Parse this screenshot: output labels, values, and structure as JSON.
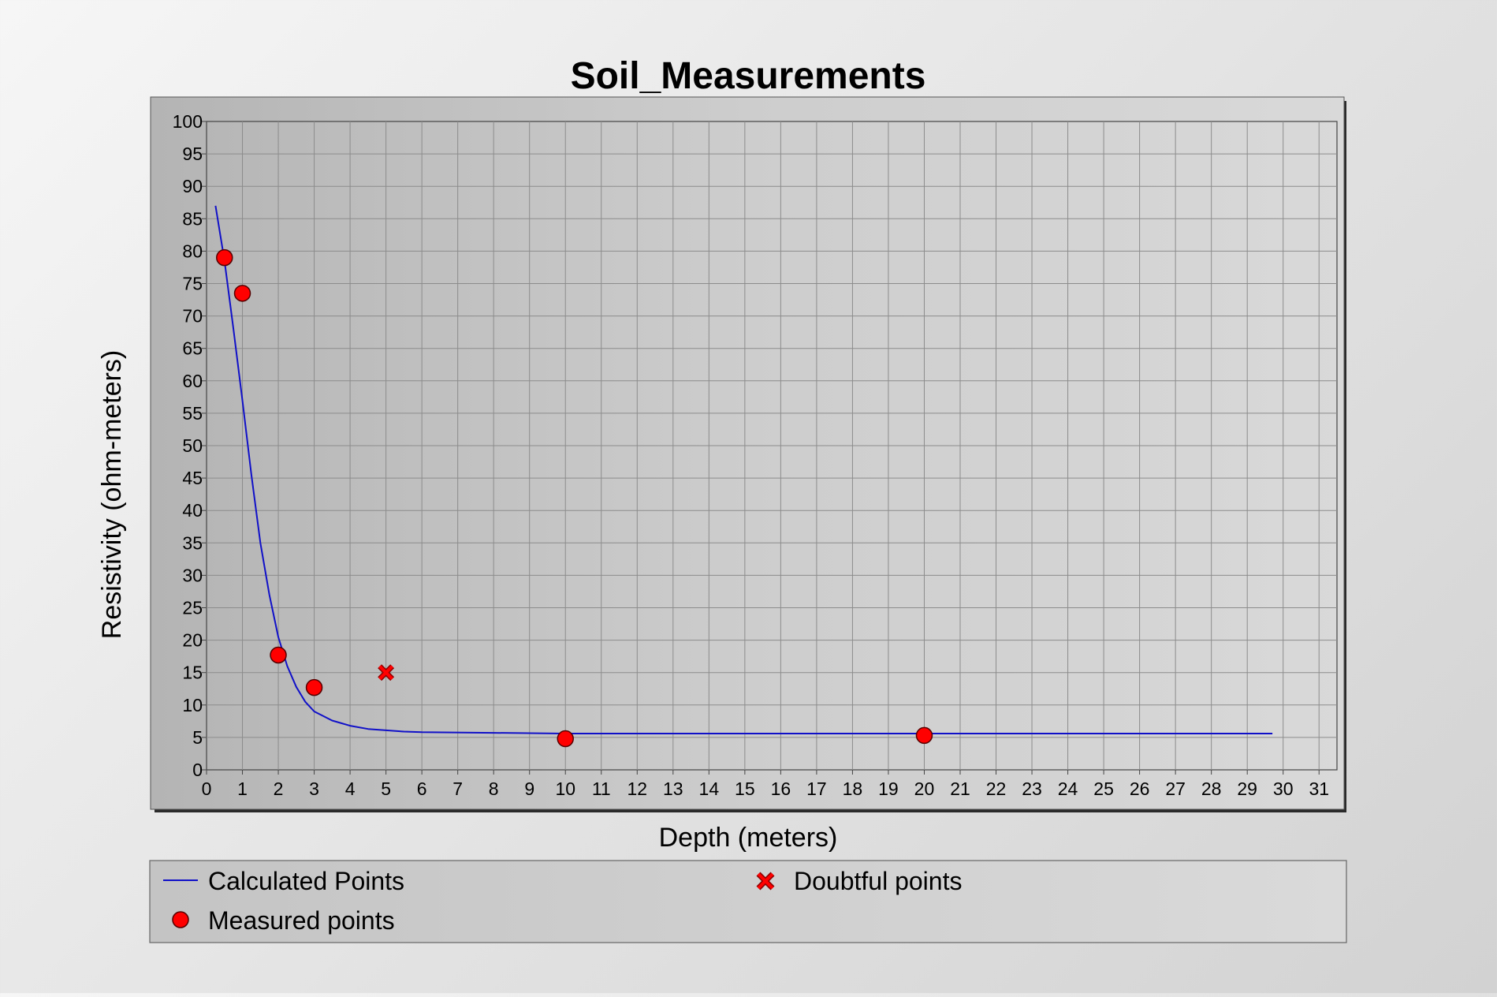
{
  "chart_data": {
    "type": "scatter",
    "title": "Soil_Measurements",
    "xlabel": "Depth (meters)",
    "ylabel": "Resistivity (ohm-meters)",
    "xlim": [
      0,
      31.5
    ],
    "ylim": [
      0,
      100
    ],
    "x_ticks": [
      0,
      1,
      2,
      3,
      4,
      5,
      6,
      7,
      8,
      9,
      10,
      11,
      12,
      13,
      14,
      15,
      16,
      17,
      18,
      19,
      20,
      21,
      22,
      23,
      24,
      25,
      26,
      27,
      28,
      29,
      30,
      31
    ],
    "y_ticks": [
      0,
      5,
      10,
      15,
      20,
      25,
      30,
      35,
      40,
      45,
      50,
      55,
      60,
      65,
      70,
      75,
      80,
      85,
      90,
      95,
      100
    ],
    "grid": true,
    "legend_position": "bottom",
    "series": [
      {
        "name": "Calculated Points",
        "type": "line",
        "color": "#1010c8",
        "x": [
          0.25,
          0.5,
          0.75,
          1.0,
          1.25,
          1.5,
          1.75,
          2.0,
          2.25,
          2.5,
          2.75,
          3.0,
          3.5,
          4.0,
          4.5,
          5.0,
          5.5,
          6.0,
          8.0,
          10.0,
          15.0,
          20.0,
          25.0,
          29.7
        ],
        "y": [
          87.0,
          78.5,
          68.0,
          57.0,
          45.5,
          35.0,
          27.0,
          20.5,
          16.0,
          12.8,
          10.5,
          9.0,
          7.6,
          6.8,
          6.3,
          6.1,
          5.9,
          5.8,
          5.7,
          5.6,
          5.6,
          5.6,
          5.6,
          5.6
        ]
      },
      {
        "name": "Measured points",
        "type": "scatter",
        "marker": "circle",
        "color": "#ff0000",
        "x": [
          0.5,
          1.0,
          2.0,
          3.0,
          10.0,
          20.0
        ],
        "y": [
          79.0,
          73.5,
          17.7,
          12.7,
          4.8,
          5.3
        ]
      },
      {
        "name": "Doubtful points",
        "type": "scatter",
        "marker": "x",
        "color": "#ff0000",
        "x": [
          5.0
        ],
        "y": [
          15.0
        ]
      }
    ]
  }
}
